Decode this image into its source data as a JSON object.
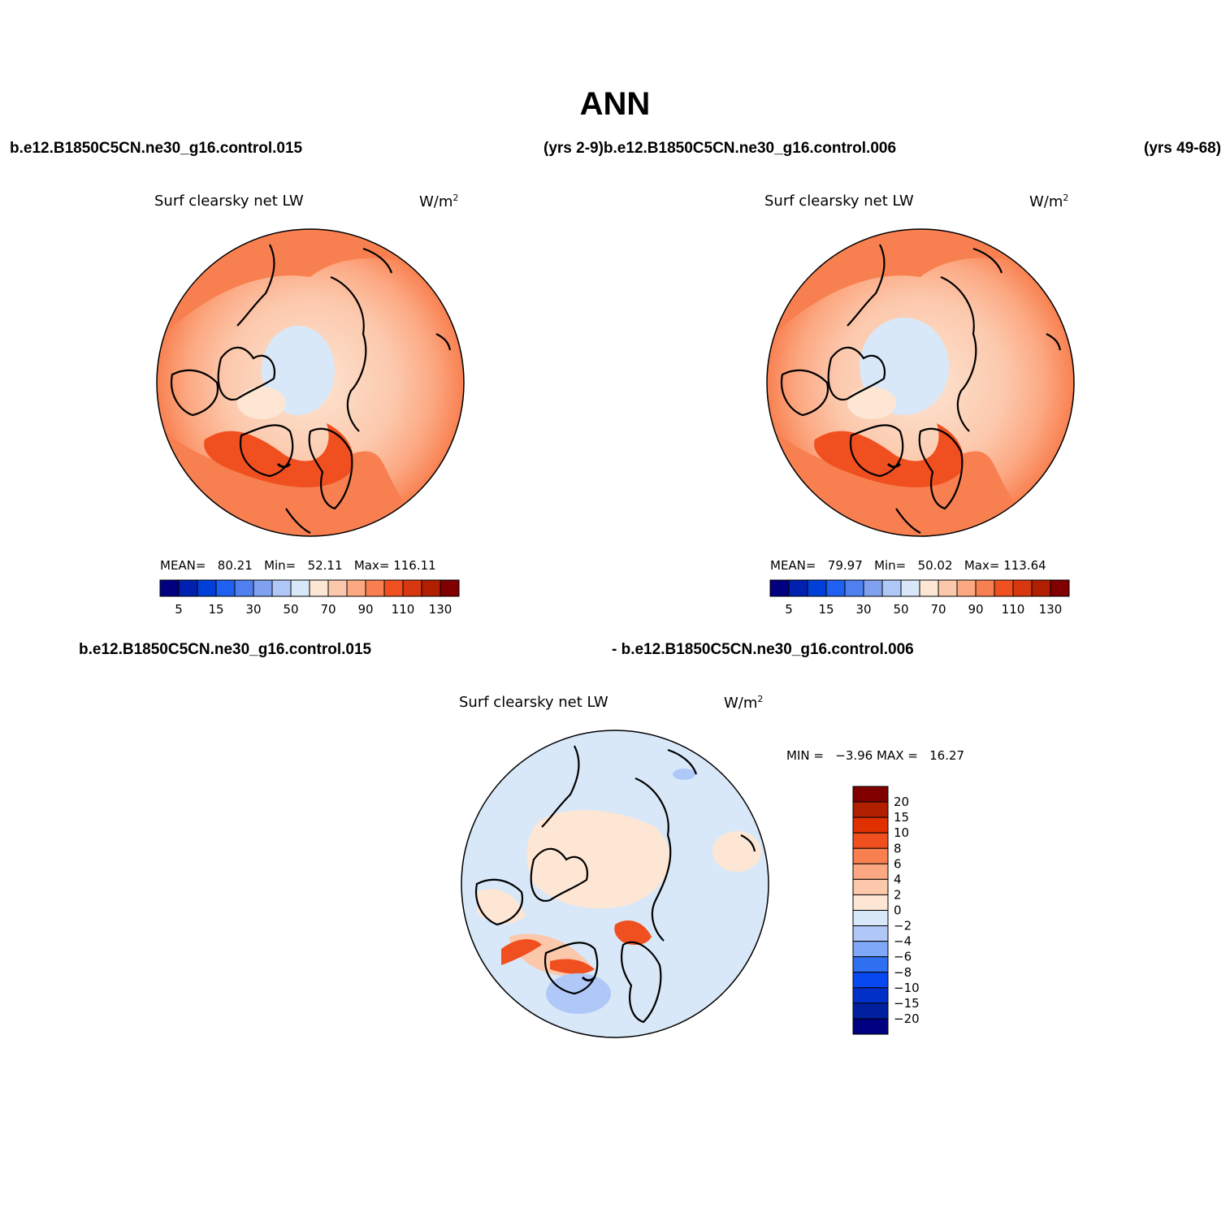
{
  "title": "ANN",
  "top_row": {
    "left_case": "b.e12.B1850C5CN.ne30_g16.control.015",
    "middle": "(yrs 2-9)b.e12.B1850C5CN.ne30_g16.control.006",
    "right": "(yrs 49-68)"
  },
  "bottom_row": {
    "left_case": "b.e12.B1850C5CN.ne30_g16.control.015",
    "right_case": "- b.e12.B1850C5CN.ne30_g16.control.006"
  },
  "colors": {
    "abs_palette": [
      "#000080",
      "#0020b0",
      "#0040d8",
      "#2060f0",
      "#5080f0",
      "#80a0f0",
      "#b0c8f8",
      "#d8e8f8",
      "#fde6d4",
      "#fcc8ac",
      "#fca882",
      "#f88050",
      "#f05020",
      "#d83810",
      "#b02000",
      "#800000"
    ],
    "diff_palette": [
      "#000080",
      "#0020a0",
      "#0030c8",
      "#0848f0",
      "#3070f0",
      "#80a8f8",
      "#b0c8f8",
      "#d8e8f8",
      "#fde6d4",
      "#fcc8ac",
      "#fca882",
      "#f88050",
      "#f05020",
      "#e03000",
      "#b02000",
      "#800000"
    ],
    "coast": "#000000"
  },
  "panels": [
    {
      "id": "case1",
      "variable": "Surf clearsky net LW",
      "units": "W/m",
      "units_sup": "2",
      "stats": {
        "mean_label": "MEAN=",
        "mean": "80.21",
        "min_label": "Min=",
        "min": "52.11",
        "max_label": "Max=",
        "max": "116.11"
      },
      "levels": [
        "5",
        "15",
        "30",
        "50",
        "70",
        "90",
        "110",
        "130"
      ]
    },
    {
      "id": "case2",
      "variable": "Surf clearsky net LW",
      "units": "W/m",
      "units_sup": "2",
      "stats": {
        "mean_label": "MEAN=",
        "mean": "79.97",
        "min_label": "Min=",
        "min": "50.02",
        "max_label": "Max=",
        "max": "113.64"
      },
      "levels": [
        "5",
        "15",
        "30",
        "50",
        "70",
        "90",
        "110",
        "130"
      ]
    },
    {
      "id": "difference",
      "variable": "Surf clearsky net LW",
      "units": "W/m",
      "units_sup": "2",
      "stats": {
        "min_label": "MIN =",
        "min": "−3.96",
        "max_label": "MAX =",
        "max": "16.27"
      },
      "levels": [
        "20",
        "15",
        "10",
        "8",
        "6",
        "4",
        "2",
        "0",
        "−2",
        "−4",
        "−6",
        "−8",
        "−10",
        "−15",
        "−20"
      ]
    }
  ]
}
